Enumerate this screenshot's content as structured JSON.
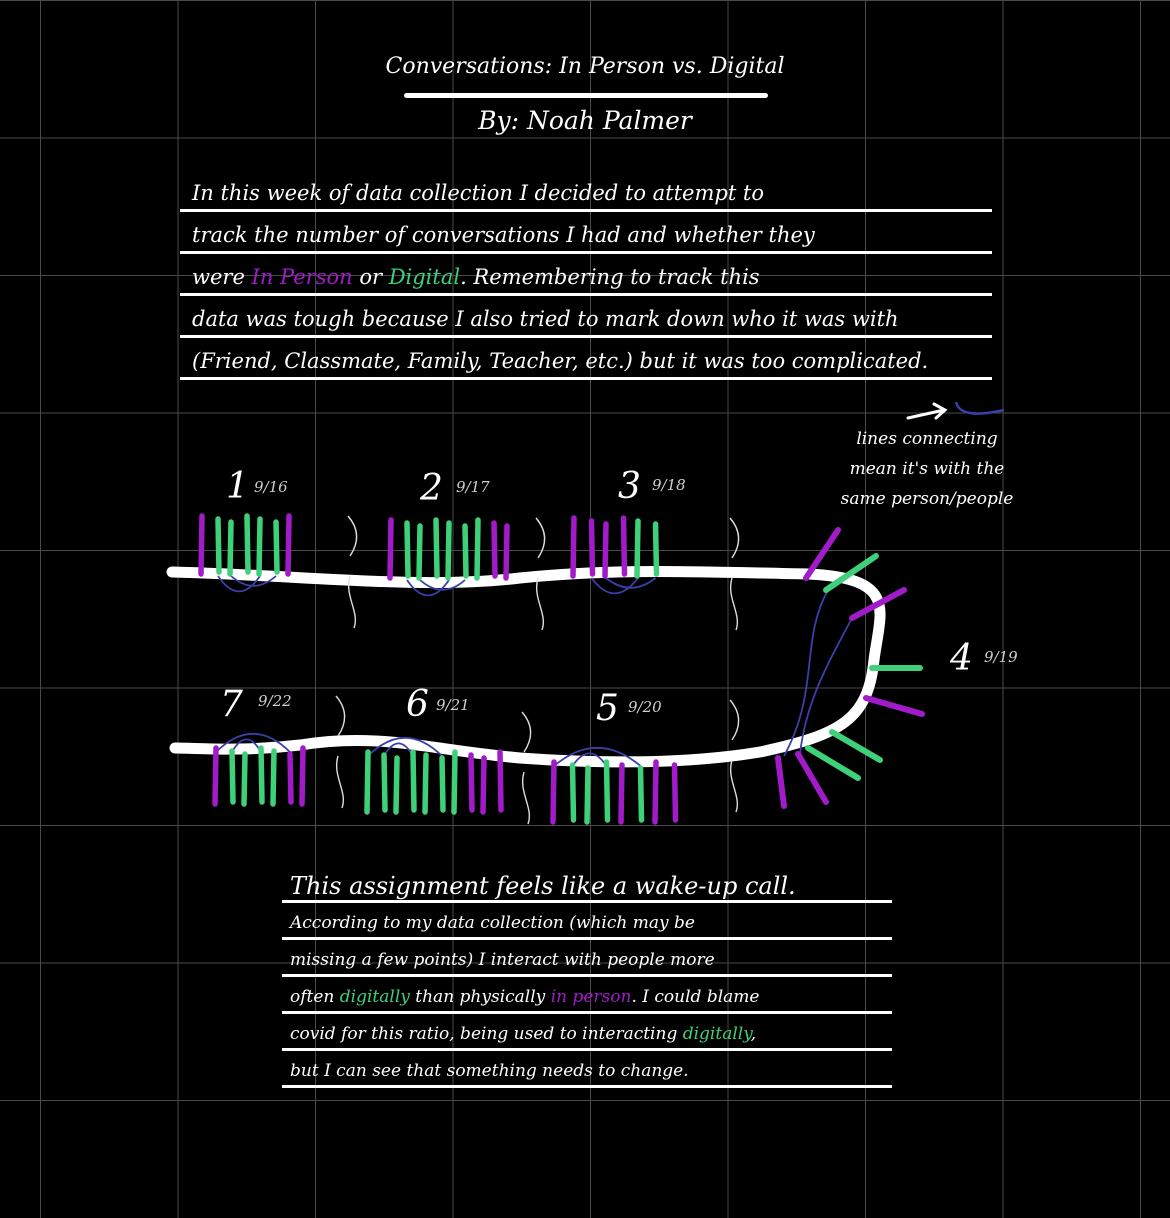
{
  "header": {
    "title": "Conversations: In Person vs. Digital",
    "byline": "By: Noah Palmer"
  },
  "intro": {
    "line1": "In this week of data collection I decided to attempt to",
    "line2": "track the number of conversations I had and whether they",
    "line3_a": "were ",
    "line3_in_person": "In Person",
    "line3_b": " or ",
    "line3_digital": "Digital",
    "line3_c": ". Remembering to track this",
    "line4": "data was tough because I also tried to mark down who it was with",
    "line5": "(Friend, Classmate, Family, Teacher, etc.) but it was too complicated."
  },
  "legend": {
    "line1": "lines connecting",
    "line2": "mean it's with the",
    "line3": "same person/people"
  },
  "colors": {
    "in_person": "#a11bc9",
    "digital": "#3fd07a",
    "connector": "#3b3fa8",
    "timeline": "#ffffff"
  },
  "chart_data": {
    "type": "timeline",
    "encoding": {
      "purple": "In Person",
      "green": "Digital"
    },
    "days": [
      {
        "num": "1",
        "date": "9/16",
        "marks": [
          "P",
          "G",
          "G",
          "G",
          "G",
          "G",
          "P"
        ]
      },
      {
        "num": "2",
        "date": "9/17",
        "marks": [
          "P",
          "G",
          "G",
          "G",
          "G",
          "G",
          "G",
          "P",
          "P"
        ]
      },
      {
        "num": "3",
        "date": "9/18",
        "marks": [
          "P",
          "P",
          "P",
          "P",
          "G",
          "G"
        ]
      },
      {
        "num": "4",
        "date": "9/19",
        "marks": [
          "P",
          "G",
          "P",
          "G",
          "P",
          "G",
          "G",
          "P",
          "P"
        ]
      },
      {
        "num": "5",
        "date": "9/20",
        "marks": [
          "P",
          "G",
          "G",
          "G",
          "P",
          "G",
          "P",
          "P"
        ]
      },
      {
        "num": "6",
        "date": "9/21",
        "marks": [
          "G",
          "G",
          "G",
          "G",
          "G",
          "G",
          "G",
          "P",
          "P",
          "P"
        ]
      },
      {
        "num": "7",
        "date": "9/22",
        "marks": [
          "P",
          "G",
          "G",
          "G",
          "G",
          "P",
          "P"
        ]
      }
    ]
  },
  "conclusion": {
    "line1": "This assignment feels like a wake-up call.",
    "line2": "According to my data collection (which may be",
    "line3": "missing a few points) I interact with people more",
    "line4_a": "often ",
    "line4_digitally": "digitally",
    "line4_b": " than physically ",
    "line4_in_person": "in person",
    "line4_c": ". I could blame",
    "line5_a": "covid for this ratio, being used to interacting ",
    "line5_digitally": "digitally",
    "line5_b": ",",
    "line6": "but I can see that something needs to change."
  }
}
